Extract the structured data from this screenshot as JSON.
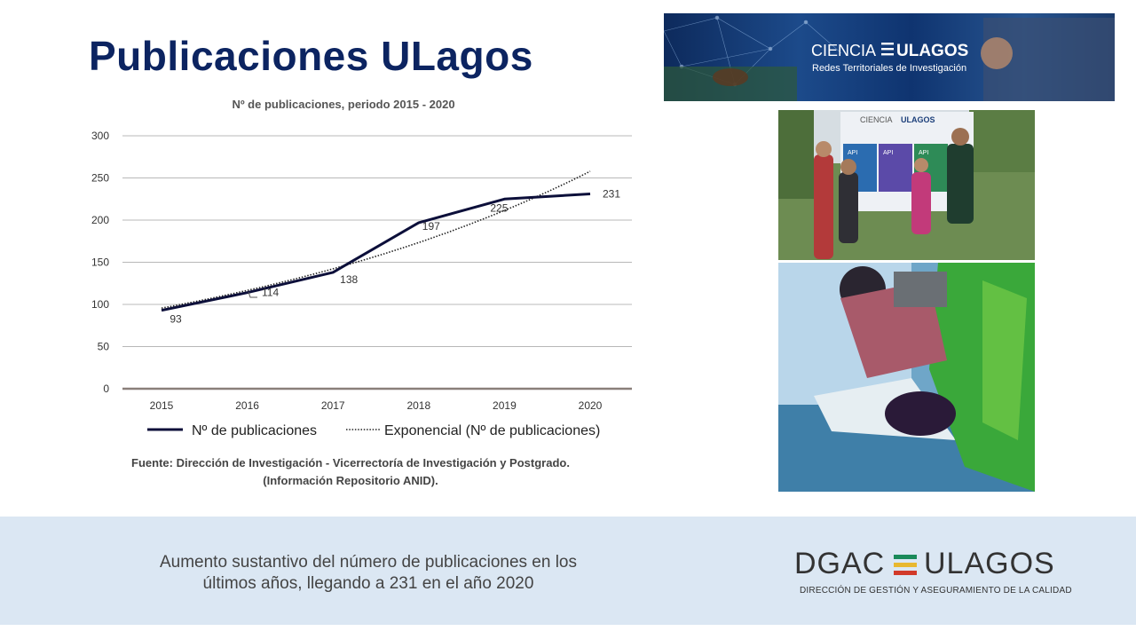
{
  "page_title": "Publicaciones ULagos",
  "chart_data": {
    "type": "line",
    "title": "Nº de publicaciones, periodo 2015 - 2020",
    "categories": [
      "2015",
      "2016",
      "2017",
      "2018",
      "2019",
      "2020"
    ],
    "series": [
      {
        "name": "Nº de publicaciones",
        "values": [
          93,
          114,
          138,
          197,
          225,
          231
        ],
        "labels": [
          "93",
          "114",
          "138",
          "197",
          "225",
          "231"
        ],
        "color": "#0c0f3a",
        "style": "solid"
      },
      {
        "name": "Exponencial (Nº de publicaciones)",
        "style": "dotted",
        "color": "#222222",
        "trendline": true
      }
    ],
    "ylim": [
      0,
      300
    ],
    "yticks": [
      "0",
      "50",
      "100",
      "150",
      "200",
      "250",
      "300"
    ],
    "grid": true,
    "legend_position": "bottom"
  },
  "source": {
    "line1": "Fuente: Dirección de Investigación - Vicerrectoría de Investigación y Postgrado.",
    "line2": "(Información Repositorio ANID)."
  },
  "footer": {
    "line1": "Aumento sustantivo del número de publicaciones en los",
    "line2": "últimos años, llegando a 231 en el año 2020"
  },
  "banner": {
    "brand_light": "CIENCIA",
    "brand_bold": "ULAGOS",
    "subtitle": "Redes Territoriales de Investigación"
  },
  "logo": {
    "left": "DGAC",
    "right": "ULAGOS",
    "subtitle": "DIRECCIÓN DE GESTIÓN Y ASEGURAMIENTO DE LA CALIDAD"
  },
  "photo_sign": {
    "brand_light": "CIENCIA",
    "brand_bold": "ULAGOS",
    "panel_label": "API"
  },
  "colors": {
    "title": "#0c2461",
    "series_line": "#0c0f3a",
    "footer_band": "#dbe7f3",
    "logo_stripes": [
      "#1a8a5a",
      "#e8b830",
      "#d23a2a"
    ]
  }
}
